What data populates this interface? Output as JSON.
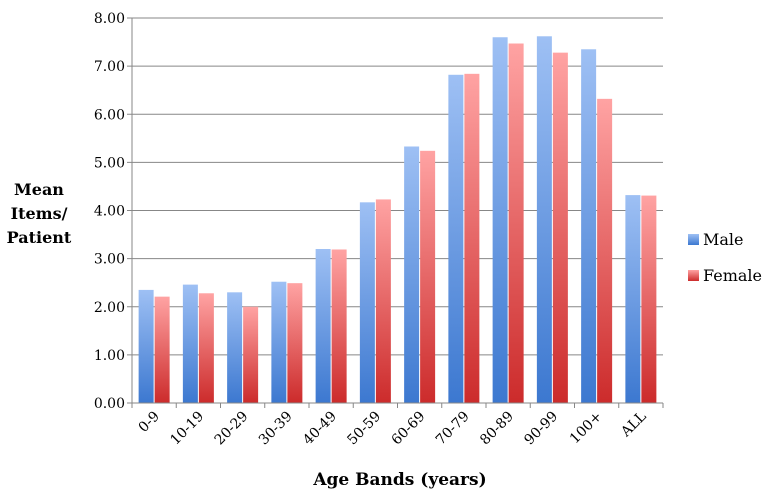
{
  "chart_data": {
    "type": "bar",
    "ylabel_lines": [
      "Mean",
      "Items/",
      "Patient"
    ],
    "xlabel": "Age Bands (years)",
    "categories": [
      "0-9",
      "10-19",
      "20-29",
      "30-39",
      "40-49",
      "50-59",
      "60-69",
      "70-79",
      "80-89",
      "90-99",
      "100+",
      "ALL"
    ],
    "series": [
      {
        "name": "Male",
        "color": "#4f81bd",
        "values": [
          2.35,
          2.46,
          2.3,
          2.52,
          3.2,
          4.17,
          5.33,
          6.82,
          7.6,
          7.62,
          7.35,
          4.32
        ]
      },
      {
        "name": "Female",
        "color": "#c0504d",
        "values": [
          2.21,
          2.28,
          2.0,
          2.49,
          3.19,
          4.23,
          5.24,
          6.84,
          7.47,
          7.28,
          6.32,
          4.31
        ]
      }
    ],
    "ylim": [
      0,
      8
    ],
    "yticks": [
      "0.00",
      "1.00",
      "2.00",
      "3.00",
      "4.00",
      "5.00",
      "6.00",
      "7.00",
      "8.00"
    ],
    "grid": true,
    "legend_position": "right"
  }
}
